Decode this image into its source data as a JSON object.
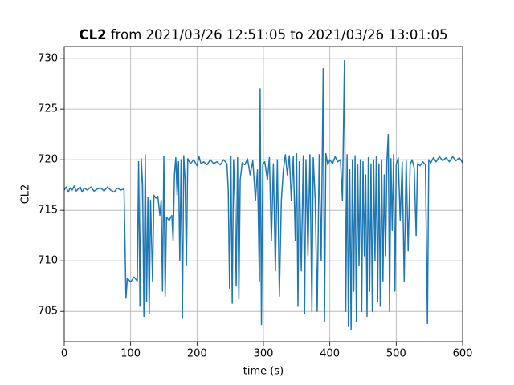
{
  "chart_data": {
    "type": "line",
    "title": [
      "CL2",
      " from 2021/03/26 12:51:05 to 2021/03/26 13:01:05"
    ],
    "xlabel": "time (s)",
    "ylabel": "CL2",
    "xlim": [
      0,
      600
    ],
    "xticks": [
      0,
      100,
      200,
      300,
      400,
      500,
      600
    ],
    "ylim": [
      702.0,
      731.2
    ],
    "yticks": [
      705,
      710,
      715,
      720,
      725,
      730
    ],
    "grid": true,
    "color": "#1f77b4",
    "x": [
      0,
      3,
      6,
      9,
      12,
      15,
      18,
      21,
      24,
      27,
      30,
      35,
      40,
      45,
      50,
      55,
      60,
      65,
      70,
      75,
      80,
      85,
      90,
      93,
      95,
      100,
      105,
      110,
      112,
      114,
      116,
      118,
      120,
      122,
      124,
      126,
      128,
      130,
      133,
      135,
      138,
      141,
      144,
      146,
      148,
      150,
      152,
      154,
      158,
      162,
      164,
      166,
      168,
      170,
      172,
      174,
      176,
      178,
      180,
      182,
      184,
      186,
      190,
      195,
      200,
      203,
      206,
      210,
      215,
      220,
      225,
      230,
      235,
      240,
      245,
      247,
      249,
      251,
      253,
      255,
      257,
      259,
      261,
      263,
      265,
      268,
      272,
      276,
      280,
      284,
      288,
      291,
      294,
      295,
      297,
      299,
      302,
      306,
      309,
      312,
      315,
      318,
      321,
      324,
      327,
      330,
      333,
      336,
      339,
      342,
      345,
      348,
      350,
      352,
      354,
      357,
      360,
      362,
      364,
      367,
      370,
      373,
      375,
      378,
      381,
      384,
      387,
      390,
      392,
      394,
      397,
      400,
      404,
      408,
      412,
      416,
      419,
      422,
      424,
      426,
      428,
      430,
      432,
      434,
      436,
      438,
      440,
      442,
      444,
      446,
      448,
      450,
      452,
      454,
      456,
      458,
      460,
      462,
      464,
      466,
      468,
      470,
      472,
      474,
      476,
      478,
      480,
      482,
      484,
      486,
      488,
      490,
      492,
      494,
      496,
      498,
      500,
      503,
      506,
      509,
      512,
      515,
      518,
      521,
      524,
      527,
      530,
      532,
      536,
      540,
      544,
      547,
      549,
      552,
      556,
      560,
      565,
      570,
      575,
      580,
      585,
      590,
      595,
      600
    ],
    "values": [
      717.0,
      717.3,
      716.8,
      717.2,
      717.0,
      717.4,
      716.9,
      717.1,
      717.3,
      716.8,
      717.2,
      717.0,
      717.3,
      716.9,
      717.1,
      717.2,
      716.9,
      717.3,
      717.0,
      716.8,
      717.2,
      717.0,
      717.1,
      706.3,
      708.3,
      707.9,
      708.4,
      708.0,
      719.8,
      705.5,
      720.1,
      717.5,
      704.5,
      720.5,
      706.0,
      716.3,
      704.8,
      716.0,
      708.0,
      716.5,
      716.2,
      716.4,
      714.5,
      716.0,
      707.0,
      720.3,
      706.5,
      714.3,
      714.0,
      714.5,
      712.0,
      718.5,
      720.2,
      716.5,
      719.8,
      710.0,
      720.0,
      704.3,
      720.4,
      718.0,
      709.5,
      720.1,
      719.6,
      720.0,
      719.4,
      720.3,
      719.6,
      719.8,
      719.5,
      720.0,
      719.6,
      719.8,
      719.5,
      720.0,
      719.6,
      717.0,
      707.3,
      720.3,
      705.8,
      720.0,
      716.0,
      707.5,
      720.2,
      706.2,
      718.0,
      719.7,
      719.5,
      720.1,
      718.5,
      719.9,
      716.0,
      719.0,
      708.0,
      727.0,
      703.7,
      719.5,
      719.8,
      718.0,
      720.2,
      712.0,
      719.6,
      709.0,
      720.0,
      706.5,
      716.0,
      719.0,
      720.5,
      718.5,
      720.4,
      716.0,
      720.3,
      712.0,
      720.6,
      705.5,
      719.8,
      709.0,
      720.4,
      704.8,
      720.0,
      710.5,
      720.5,
      705.0,
      720.2,
      716.0,
      705.0,
      720.5,
      710.0,
      729.0,
      704.0,
      720.6,
      719.5,
      720.0,
      719.6,
      720.3,
      719.8,
      720.0,
      716.0,
      729.8,
      705.0,
      720.5,
      703.5,
      719.0,
      703.2,
      720.0,
      707.0,
      720.4,
      704.0,
      719.5,
      709.5,
      720.0,
      705.0,
      719.8,
      710.5,
      718.5,
      704.5,
      720.2,
      707.0,
      719.6,
      705.0,
      720.0,
      710.0,
      720.3,
      706.0,
      719.6,
      705.5,
      720.0,
      708.0,
      718.5,
      710.5,
      719.9,
      722.5,
      705.0,
      720.1,
      713.0,
      720.5,
      707.0,
      719.5,
      720.2,
      714.0,
      719.8,
      708.0,
      720.0,
      711.0,
      719.5,
      720.0,
      719.2,
      712.5,
      719.6,
      719.4,
      719.8,
      719.5,
      703.8,
      720.0,
      719.7,
      720.2,
      719.8,
      720.3,
      719.9,
      720.2,
      719.8,
      720.3,
      719.9,
      720.2,
      719.7
    ]
  }
}
